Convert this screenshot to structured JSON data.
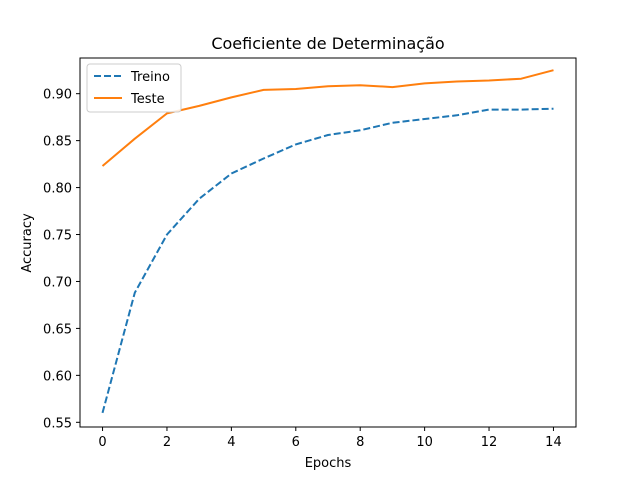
{
  "chart_data": {
    "type": "line",
    "title": "Coeficiente de Determinação",
    "xlabel": "Epochs",
    "ylabel": "Accuracy",
    "xlim": [
      -0.7,
      14.7
    ],
    "ylim": [
      0.545,
      0.938
    ],
    "xticks": [
      0,
      2,
      4,
      6,
      8,
      10,
      12,
      14
    ],
    "xtick_labels": [
      "0",
      "2",
      "4",
      "6",
      "8",
      "10",
      "12",
      "14"
    ],
    "yticks": [
      0.55,
      0.6,
      0.65,
      0.7,
      0.75,
      0.8,
      0.85,
      0.9
    ],
    "ytick_labels": [
      "0.55",
      "0.60",
      "0.65",
      "0.70",
      "0.75",
      "0.80",
      "0.85",
      "0.90"
    ],
    "grid": false,
    "legend": "top-left",
    "x": [
      0,
      1,
      2,
      3,
      4,
      5,
      6,
      7,
      8,
      9,
      10,
      11,
      12,
      13,
      14
    ],
    "series": [
      {
        "name": "Treino",
        "color": "#1f77b4",
        "style": "dashed",
        "values": [
          0.56,
          0.688,
          0.75,
          0.788,
          0.815,
          0.831,
          0.846,
          0.856,
          0.861,
          0.869,
          0.873,
          0.877,
          0.883,
          0.883,
          0.884
        ]
      },
      {
        "name": "Teste",
        "color": "#ff7f0e",
        "style": "solid",
        "values": [
          0.823,
          0.852,
          0.879,
          0.887,
          0.896,
          0.904,
          0.905,
          0.908,
          0.909,
          0.907,
          0.911,
          0.913,
          0.914,
          0.916,
          0.925
        ]
      }
    ]
  }
}
